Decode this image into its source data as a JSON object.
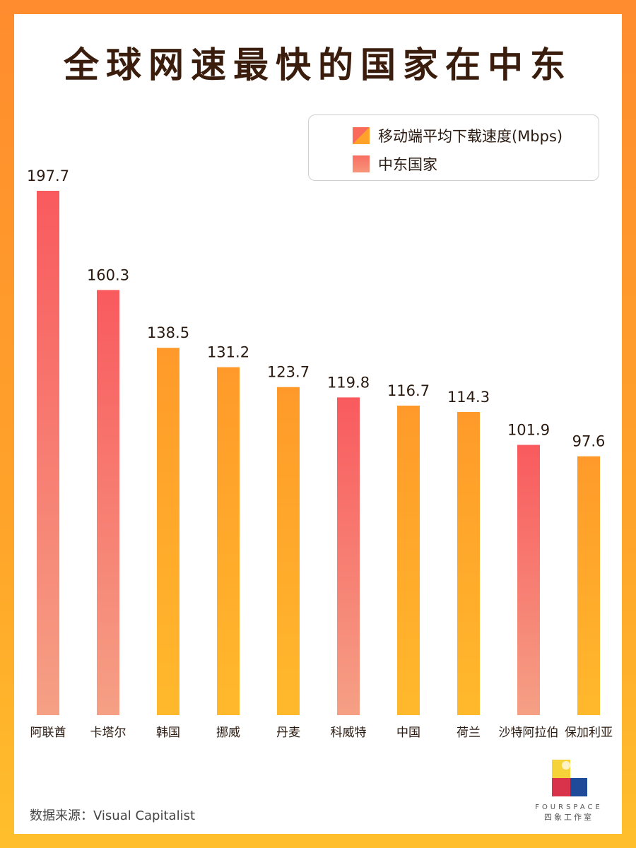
{
  "title": "全球网速最快的国家在中东",
  "legend": {
    "series": "移动端平均下载速度(Mbps)",
    "highlight": "中东国家"
  },
  "source": "数据来源：Visual Capitalist",
  "logo": {
    "en": "FOURSPACE",
    "cn": "四象工作室"
  },
  "colors": {
    "regular_top": "#ff9a2a",
    "regular_bottom": "#ffb92c",
    "middle_east_top": "#f95a5e",
    "middle_east_bottom": "#f5a085",
    "title": "#3a1d0c"
  },
  "chart_data": {
    "type": "bar",
    "title": "全球网速最快的国家在中东",
    "ylabel": "移动端平均下载速度(Mbps)",
    "ylim": [
      0,
      197.7
    ],
    "categories": [
      "阿联酋",
      "卡塔尔",
      "韩国",
      "挪威",
      "丹麦",
      "科威特",
      "中国",
      "荷兰",
      "沙特阿拉伯",
      "保加利亚"
    ],
    "values": [
      197.7,
      160.3,
      138.5,
      131.2,
      123.7,
      119.8,
      116.7,
      114.3,
      101.9,
      97.6
    ],
    "labels": [
      "197.7",
      "160.3",
      "138.5",
      "131.2",
      "123.7",
      "119.8",
      "116.7",
      "114.3",
      "101.9",
      "97.6"
    ],
    "middle_east": [
      true,
      true,
      false,
      false,
      false,
      true,
      false,
      false,
      true,
      false
    ],
    "legend_position": "top-right",
    "grid": false
  }
}
